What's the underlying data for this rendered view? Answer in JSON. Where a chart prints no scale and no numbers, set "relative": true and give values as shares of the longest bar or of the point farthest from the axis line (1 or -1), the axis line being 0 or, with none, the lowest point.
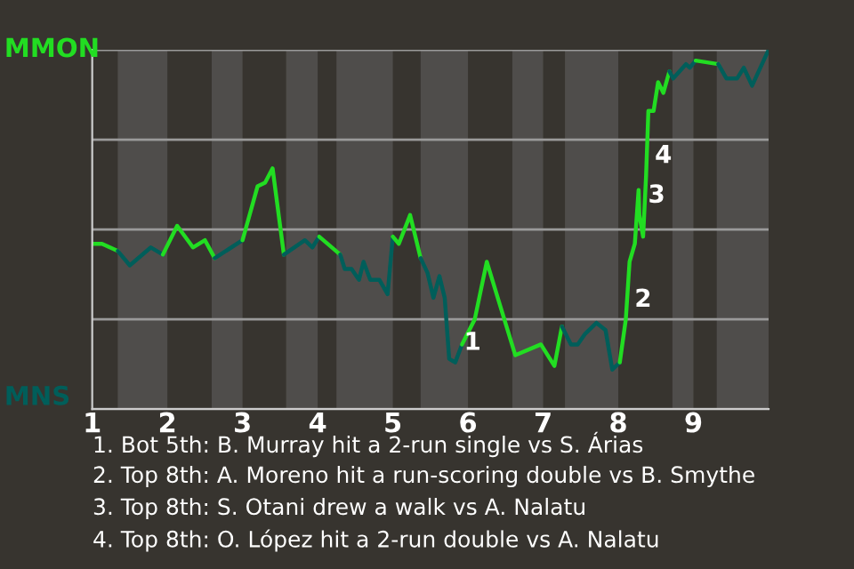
{
  "chart_data": {
    "type": "line",
    "relative": true,
    "grid": "y",
    "xlim": [
      1,
      10
    ],
    "xticks": [
      1,
      2,
      3,
      4,
      5,
      6,
      7,
      8,
      9
    ],
    "bands": [
      {
        "axis": "x",
        "from": 1.34,
        "to": 2.0,
        "color": "#4f4d4b"
      },
      {
        "axis": "x",
        "from": 2.59,
        "to": 3.0,
        "color": "#4f4d4b"
      },
      {
        "axis": "x",
        "from": 3.58,
        "to": 4.0,
        "color": "#4f4d4b"
      },
      {
        "axis": "x",
        "from": 4.25,
        "to": 5.0,
        "color": "#4f4d4b"
      },
      {
        "axis": "x",
        "from": 5.37,
        "to": 6.0,
        "color": "#4f4d4b"
      },
      {
        "axis": "x",
        "from": 6.59,
        "to": 7.0,
        "color": "#4f4d4b"
      },
      {
        "axis": "x",
        "from": 7.29,
        "to": 8.0,
        "color": "#4f4d4b"
      },
      {
        "axis": "x",
        "from": 8.72,
        "to": 9.0,
        "color": "#4f4d4b"
      },
      {
        "axis": "x",
        "from": 9.31,
        "to": 10.0,
        "color": "#4f4d4b"
      }
    ],
    "series": [
      {
        "name": "MMON",
        "color": "#22dd22",
        "x": [
          1.0,
          1.13,
          1.34
        ],
        "values": [
          0.46,
          0.46,
          0.44
        ]
      },
      {
        "name": "MNS",
        "color": "#005e5a",
        "x": [
          1.34,
          1.5,
          1.78,
          1.94
        ],
        "values": [
          0.44,
          0.4,
          0.45,
          0.43
        ]
      },
      {
        "color": "#22dd22",
        "x": [
          1.94,
          2.13,
          2.34,
          2.5,
          2.63
        ],
        "values": [
          0.43,
          0.51,
          0.45,
          0.47,
          0.42
        ]
      },
      {
        "color": "#005e5a",
        "x": [
          2.63,
          3.0
        ],
        "values": [
          0.42,
          0.47
        ]
      },
      {
        "color": "#22dd22",
        "x": [
          3.0,
          3.2,
          3.3,
          3.4,
          3.55
        ],
        "values": [
          0.47,
          0.62,
          0.63,
          0.67,
          0.43
        ]
      },
      {
        "color": "#005e5a",
        "x": [
          3.55,
          3.83,
          3.93,
          4.02
        ],
        "values": [
          0.43,
          0.47,
          0.45,
          0.48
        ]
      },
      {
        "color": "#22dd22",
        "x": [
          4.02,
          4.3
        ],
        "values": [
          0.48,
          0.43
        ]
      },
      {
        "color": "#005e5a",
        "x": [
          4.3,
          4.36,
          4.45,
          4.55,
          4.61,
          4.7,
          4.82,
          4.93,
          5.0
        ],
        "values": [
          0.43,
          0.39,
          0.39,
          0.36,
          0.41,
          0.36,
          0.36,
          0.32,
          0.48
        ]
      },
      {
        "color": "#22dd22",
        "x": [
          5.0,
          5.08,
          5.23,
          5.37
        ],
        "values": [
          0.48,
          0.46,
          0.54,
          0.42
        ]
      },
      {
        "color": "#005e5a",
        "x": [
          5.37,
          5.46,
          5.54,
          5.62,
          5.69,
          5.75,
          5.83,
          5.92
        ],
        "values": [
          0.42,
          0.38,
          0.31,
          0.37,
          0.31,
          0.14,
          0.13,
          0.18
        ]
      },
      {
        "color": "#22dd22",
        "x": [
          5.92,
          6.09,
          6.25,
          6.41,
          6.63,
          6.97,
          7.15,
          7.25
        ],
        "values": [
          0.18,
          0.25,
          0.41,
          0.3,
          0.15,
          0.18,
          0.12,
          0.23
        ]
      },
      {
        "color": "#005e5a",
        "x": [
          7.25,
          7.37,
          7.46,
          7.56,
          7.71,
          7.83,
          7.92,
          8.02
        ],
        "values": [
          0.23,
          0.18,
          0.18,
          0.21,
          0.24,
          0.22,
          0.11,
          0.13
        ]
      },
      {
        "color": "#22dd22",
        "x": [
          8.02,
          8.1,
          8.15,
          8.22,
          8.27,
          8.28,
          8.33,
          8.37,
          8.4,
          8.47,
          8.53,
          8.6,
          8.68
        ],
        "values": [
          0.13,
          0.25,
          0.41,
          0.46,
          0.61,
          0.54,
          0.48,
          0.65,
          0.83,
          0.83,
          0.91,
          0.88,
          0.94
        ]
      },
      {
        "color": "#005e5a",
        "x": [
          8.68,
          8.73,
          8.9,
          8.95,
          9.03
        ],
        "values": [
          0.94,
          0.92,
          0.96,
          0.95,
          0.97
        ]
      },
      {
        "color": "#22dd22",
        "x": [
          9.03,
          9.33
        ],
        "values": [
          0.97,
          0.96
        ]
      },
      {
        "color": "#005e5a",
        "x": [
          9.33,
          9.44,
          9.58,
          9.67,
          9.78,
          10.0
        ],
        "values": [
          0.96,
          0.92,
          0.92,
          0.95,
          0.9,
          1.0
        ]
      }
    ],
    "annotations": [
      {
        "text": "1",
        "x": 5.83,
        "y": 0.13
      },
      {
        "text": "2",
        "x": 8.1,
        "y": 0.25
      },
      {
        "text": "3",
        "x": 8.28,
        "y": 0.54
      },
      {
        "text": "4",
        "x": 8.37,
        "y": 0.65
      },
      "1. Bot 5th: B. Murray hit a 2-run single vs S. Árias",
      "2. Top 8th: A. Moreno hit a run-scoring double vs B. Smythe",
      "3. Top 8th: S. Otani drew a walk vs A. Nalatu",
      "4. Top 8th: O. López hit a 2-run double vs A. Nalatu"
    ]
  }
}
